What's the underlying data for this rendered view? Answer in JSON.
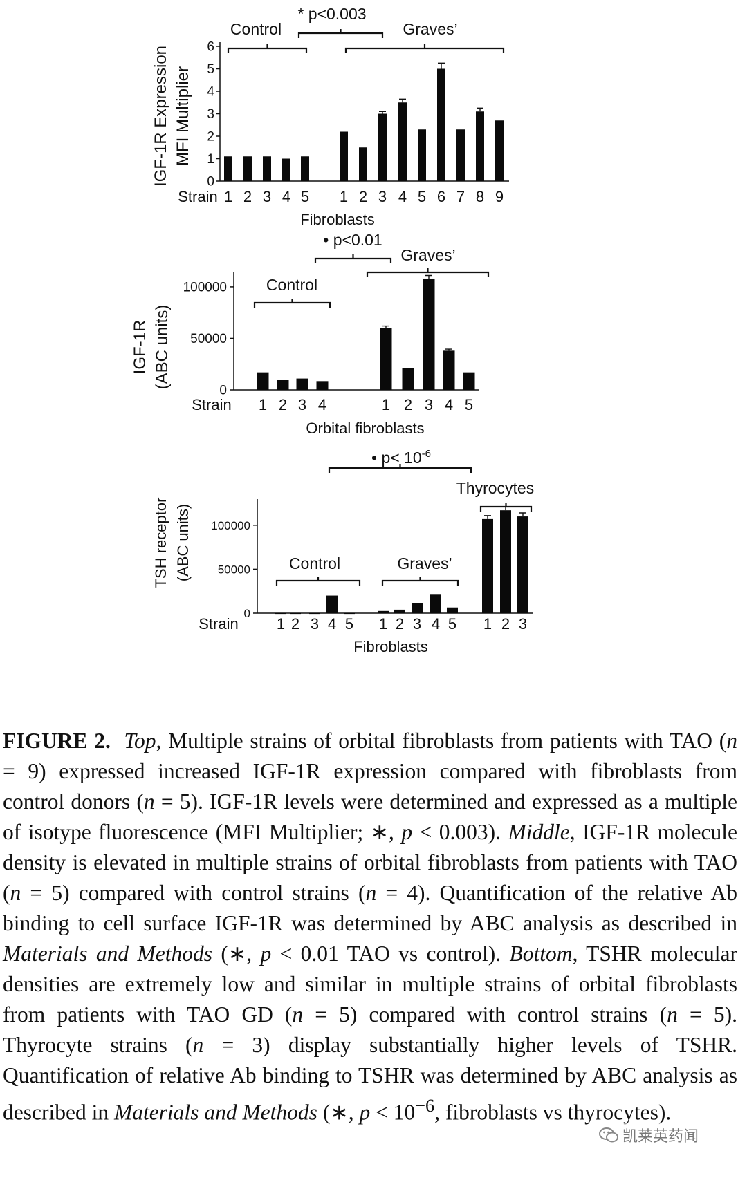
{
  "chart_data": [
    {
      "type": "bar",
      "panel": "top",
      "ylabel_line1": "IGF-1R Expression",
      "ylabel_line2": "MFI Multiplier",
      "xlabel": "Fibroblasts",
      "strain_label": "Strain",
      "ylim": [
        0,
        6
      ],
      "yticks": [
        "0",
        "1",
        "2",
        "3",
        "4",
        "5",
        "6"
      ],
      "groups": [
        {
          "name": "Control",
          "categories": [
            "1",
            "2",
            "3",
            "4",
            "5"
          ],
          "values": [
            1.1,
            1.1,
            1.1,
            1.0,
            1.1
          ],
          "errors": [
            0,
            0,
            0,
            0,
            0
          ]
        },
        {
          "name": "Graves’",
          "categories": [
            "1",
            "2",
            "3",
            "4",
            "5",
            "6",
            "7",
            "8",
            "9"
          ],
          "values": [
            2.2,
            1.5,
            3.0,
            3.5,
            2.3,
            5.0,
            2.3,
            3.1,
            2.7
          ],
          "errors": [
            0,
            0,
            0.1,
            0.15,
            0,
            0.25,
            0,
            0.15,
            0
          ]
        }
      ],
      "significance": "* p<0.003"
    },
    {
      "type": "bar",
      "panel": "middle",
      "ylabel_line1": "IGF-1R",
      "ylabel_line2": "(ABC units)",
      "xlabel": "Orbital fibroblasts",
      "strain_label": "Strain",
      "ylim": [
        0,
        110000
      ],
      "yticks": [
        "0",
        "50000",
        "100000"
      ],
      "groups": [
        {
          "name": "Control",
          "categories": [
            "1",
            "2",
            "3",
            "4"
          ],
          "values": [
            17000,
            9500,
            11000,
            8500
          ],
          "errors": [
            0,
            0,
            0,
            0
          ]
        },
        {
          "name": "Graves’",
          "categories": [
            "1",
            "2",
            "3",
            "4",
            "5"
          ],
          "values": [
            60000,
            21000,
            108000,
            38000,
            17000
          ],
          "errors": [
            2000,
            0,
            3000,
            1500,
            0
          ]
        }
      ],
      "significance": "• p<0.01"
    },
    {
      "type": "bar",
      "panel": "bottom",
      "ylabel_line1": "TSH receptor",
      "ylabel_line2": "(ABC units)",
      "xlabel": "Fibroblasts",
      "strain_label": "Strain",
      "ylim": [
        0,
        125000
      ],
      "yticks": [
        "0",
        "50000",
        "100000"
      ],
      "groups": [
        {
          "name": "Control",
          "categories": [
            "1",
            "2",
            "3",
            "4",
            "5"
          ],
          "values": [
            300,
            300,
            300,
            20000,
            300
          ],
          "errors": [
            0,
            0,
            0,
            0,
            0
          ]
        },
        {
          "name": "Graves’",
          "categories": [
            "1",
            "2",
            "3",
            "4",
            "5"
          ],
          "values": [
            2500,
            4000,
            11000,
            21000,
            6500
          ],
          "errors": [
            0,
            0,
            0,
            0,
            0
          ]
        },
        {
          "name": "Thyrocytes",
          "categories": [
            "1",
            "2",
            "3"
          ],
          "values": [
            107000,
            117000,
            110000
          ],
          "errors": [
            4000,
            4000,
            4000
          ]
        }
      ],
      "significance_prefix": "• p< 10",
      "significance_exp": "-6"
    }
  ],
  "caption": {
    "label": "FIGURE 2.",
    "top": "Top",
    "t1": ", Multiple strains of orbital fibroblasts from patients with TAO (",
    "n": "n",
    "t2": " = 9) expressed increased IGF-1R expression compared with fibroblasts from control donors (",
    "t3": " = 5). IGF-1R levels were determined and expressed as a multiple of isotype fluorescence (MFI Multiplier; ∗, ",
    "p": "p",
    "t4": " < 0.003). ",
    "middle": "Middle",
    "t5": ", IGF-1R molecule density is elevated in multiple strains of orbital fibroblasts from patients with TAO (",
    "t6": " = 5) compared with control strains (",
    "t7": " = 4). Quantification of the relative Ab binding to cell surface IGF-1R was determined by ABC analysis as described in ",
    "mm": "Materials and Methods",
    "t8": " (∗, ",
    "t9": " < 0.01 TAO vs control). ",
    "bottom": "Bottom",
    "t10": ", TSHR molecular densities are extremely low and similar in multiple strains of orbital fibroblasts from patients with TAO GD (",
    "t11": " = 5) compared with control strains (",
    "t12": " = 5). Thyrocyte strains (",
    "t13": " = 3) display substantially higher levels of TSHR. Quantification of relative Ab binding to TSHR was determined by ABC analysis as described in ",
    "t14": " (∗, ",
    "t15": " < 10",
    "sup": "−6",
    "t16": ", fibroblasts vs thyrocytes)."
  },
  "watermark": {
    "text": "凯莱英药闻",
    "icon": "wechat-icon"
  }
}
